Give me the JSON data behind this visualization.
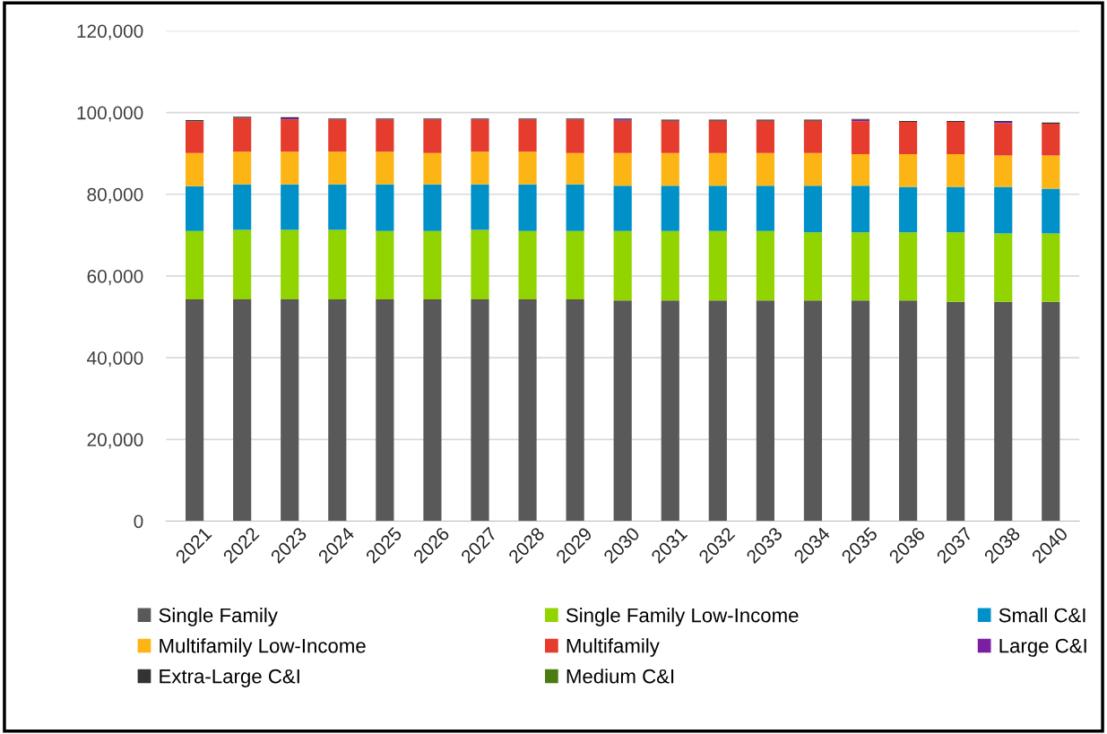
{
  "chart_data": {
    "type": "bar",
    "stacked": true,
    "grid": "y",
    "legend": "bottom",
    "categories": [
      "2021",
      "2022",
      "2023",
      "2024",
      "2025",
      "2026",
      "2027",
      "2028",
      "2029",
      "2030",
      "2031",
      "2032",
      "2033",
      "2034",
      "2035",
      "2036",
      "2037",
      "2038",
      "2040"
    ],
    "ylim": [
      0,
      120000
    ],
    "yticks": [
      {
        "value": 0,
        "label": "0"
      },
      {
        "value": 20000,
        "label": "20,000"
      },
      {
        "value": 40000,
        "label": "40,000"
      },
      {
        "value": 60000,
        "label": "60,000"
      },
      {
        "value": 80000,
        "label": "80,000"
      },
      {
        "value": 100000,
        "label": "100,000"
      },
      {
        "value": 120000,
        "label": "120,000"
      }
    ],
    "series": [
      {
        "name": "Single Family",
        "color": "#595959",
        "values": [
          54300,
          54300,
          54300,
          54300,
          54300,
          54300,
          54300,
          54300,
          54300,
          54000,
          54000,
          54000,
          54000,
          54000,
          54000,
          54000,
          53700,
          53700,
          53700
        ]
      },
      {
        "name": "Single Family Low-Income",
        "color": "#92d400",
        "values": [
          16700,
          17000,
          17000,
          17000,
          16700,
          16700,
          17000,
          16700,
          16700,
          17000,
          17000,
          17000,
          17000,
          16700,
          16700,
          16700,
          17000,
          16700,
          16700
        ]
      },
      {
        "name": "Small C&I",
        "color": "#0091c8",
        "values": [
          11000,
          11100,
          11100,
          11100,
          11400,
          11400,
          11100,
          11400,
          11400,
          11100,
          11100,
          11100,
          11100,
          11400,
          11400,
          11100,
          11100,
          11400,
          11000
        ]
      },
      {
        "name": "Multifamily Low-Income",
        "color": "#fdb515",
        "values": [
          8100,
          8000,
          8000,
          8000,
          8000,
          7700,
          8000,
          8000,
          7700,
          8000,
          8000,
          8000,
          8000,
          8000,
          7700,
          8000,
          8000,
          7700,
          8100
        ]
      },
      {
        "name": "Multifamily",
        "color": "#e53c2e",
        "values": [
          7800,
          8300,
          7900,
          7900,
          7900,
          8200,
          7900,
          7900,
          8200,
          7900,
          7900,
          7900,
          7900,
          7900,
          8100,
          7900,
          7900,
          7900,
          7800
        ]
      },
      {
        "name": "Large C&I",
        "color": "#7b1fa2",
        "values": [
          null,
          null,
          300,
          null,
          null,
          null,
          null,
          null,
          null,
          300,
          null,
          null,
          null,
          null,
          300,
          null,
          null,
          300,
          null
        ]
      },
      {
        "name": "Extra-Large C&I",
        "color": "#333333",
        "values": [
          250,
          250,
          250,
          250,
          250,
          250,
          250,
          250,
          250,
          250,
          250,
          250,
          250,
          250,
          250,
          250,
          250,
          250,
          250
        ]
      },
      {
        "name": "Medium C&I",
        "color": "#4a7c10",
        "values": [
          null,
          null,
          null,
          null,
          null,
          null,
          null,
          null,
          null,
          null,
          null,
          null,
          null,
          null,
          null,
          null,
          null,
          null,
          null
        ]
      }
    ]
  }
}
